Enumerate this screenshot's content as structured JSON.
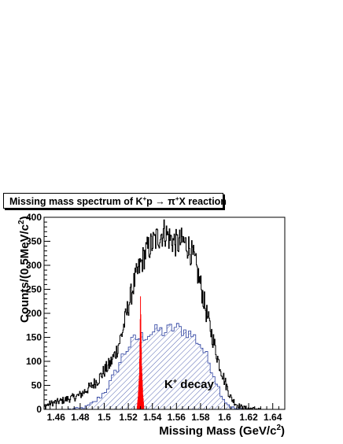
{
  "title_pre": "Missing mass spectrum of K",
  "title_sup1": "+",
  "title_mid": "p ",
  "title_arrow": "→",
  "title_pi": " π",
  "title_sup2": "+",
  "title_post": "X reaction",
  "xlabel_main": "Missing Mass (GeV/c",
  "xlabel_sup": "2",
  "xlabel_close": ")",
  "ylabel_main": "Counts/(0.5MeV/c",
  "ylabel_sup": "2",
  "ylabel_close": ")",
  "annotation_pre": "K",
  "annotation_sup": "+",
  "annotation_post": " decay",
  "colors": {
    "total": "#000000",
    "decay_hatch": "#2a3f9f",
    "peak": "#ff0000",
    "axis": "#000000"
  },
  "chart_data": {
    "type": "histogram",
    "xlim": [
      1.45,
      1.65
    ],
    "ylim": [
      0,
      400
    ],
    "bin_width": 0.0005,
    "xticks": [
      "1.46",
      "1.48",
      "1.5",
      "1.52",
      "1.54",
      "1.56",
      "1.58",
      "1.6",
      "1.62",
      "1.64"
    ],
    "yticks": [
      "0",
      "50",
      "100",
      "150",
      "200",
      "250",
      "300",
      "350",
      "400"
    ],
    "series": [
      {
        "style": "black-line",
        "points": [
          [
            1.45,
            5
          ],
          [
            1.455,
            12
          ],
          [
            1.46,
            15
          ],
          [
            1.465,
            18
          ],
          [
            1.47,
            22
          ],
          [
            1.475,
            25
          ],
          [
            1.48,
            30
          ],
          [
            1.485,
            40
          ],
          [
            1.49,
            50
          ],
          [
            1.495,
            62
          ],
          [
            1.5,
            80
          ],
          [
            1.505,
            95
          ],
          [
            1.51,
            120
          ],
          [
            1.515,
            160
          ],
          [
            1.52,
            215
          ],
          [
            1.525,
            265
          ],
          [
            1.53,
            300
          ],
          [
            1.535,
            330
          ],
          [
            1.54,
            345
          ],
          [
            1.545,
            360
          ],
          [
            1.55,
            370
          ],
          [
            1.555,
            355
          ],
          [
            1.56,
            345
          ],
          [
            1.565,
            350
          ],
          [
            1.57,
            340
          ],
          [
            1.575,
            310
          ],
          [
            1.58,
            260
          ],
          [
            1.585,
            200
          ],
          [
            1.59,
            150
          ],
          [
            1.595,
            100
          ],
          [
            1.6,
            60
          ],
          [
            1.605,
            25
          ],
          [
            1.61,
            10
          ],
          [
            1.615,
            4
          ],
          [
            1.62,
            2
          ],
          [
            1.63,
            0
          ],
          [
            1.65,
            0
          ]
        ]
      },
      {
        "name": "K+ decay",
        "style": "blue-hatched",
        "points": [
          [
            1.45,
            0
          ],
          [
            1.47,
            0
          ],
          [
            1.48,
            2
          ],
          [
            1.485,
            5
          ],
          [
            1.49,
            12
          ],
          [
            1.495,
            22
          ],
          [
            1.5,
            35
          ],
          [
            1.505,
            55
          ],
          [
            1.51,
            80
          ],
          [
            1.515,
            110
          ],
          [
            1.52,
            130
          ],
          [
            1.525,
            145
          ],
          [
            1.53,
            150
          ],
          [
            1.535,
            155
          ],
          [
            1.54,
            160
          ],
          [
            1.545,
            165
          ],
          [
            1.55,
            160
          ],
          [
            1.555,
            168
          ],
          [
            1.56,
            170
          ],
          [
            1.565,
            165
          ],
          [
            1.57,
            160
          ],
          [
            1.575,
            150
          ],
          [
            1.58,
            135
          ],
          [
            1.585,
            110
          ],
          [
            1.59,
            80
          ],
          [
            1.595,
            45
          ],
          [
            1.6,
            18
          ],
          [
            1.605,
            5
          ],
          [
            1.61,
            1
          ],
          [
            1.615,
            0
          ],
          [
            1.65,
            0
          ]
        ]
      },
      {
        "style": "red-filled",
        "points": [
          [
            1.527,
            0
          ],
          [
            1.528,
            25
          ],
          [
            1.529,
            70
          ],
          [
            1.5295,
            140
          ],
          [
            1.53,
            235
          ],
          [
            1.5305,
            160
          ],
          [
            1.531,
            90
          ],
          [
            1.532,
            30
          ],
          [
            1.533,
            0
          ]
        ]
      }
    ]
  }
}
